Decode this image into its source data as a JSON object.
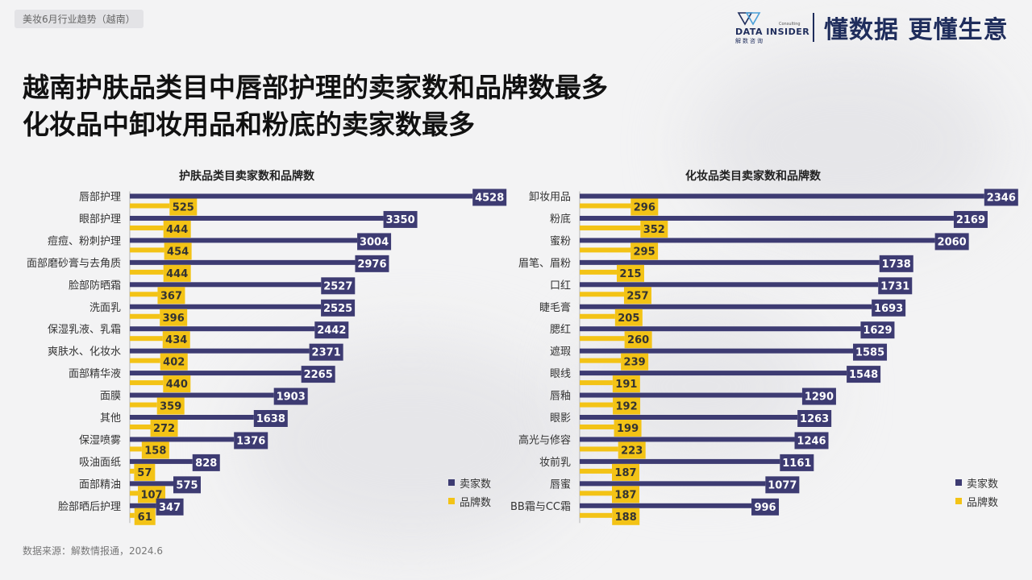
{
  "header": {
    "tag": "美妆6月行业趋势（越南）",
    "logo_text": "DATA INSIDER",
    "logo_sub": "解数咨询",
    "logo_consult": "Consulting",
    "slogan": "懂数据 更懂生意"
  },
  "title_line1": "越南护肤品类目中唇部护理的卖家数和品牌数最多",
  "title_line2": "化妆品中卸妆用品和粉底的卖家数最多",
  "source": "数据来源：解数情报通，2024.6",
  "colors": {
    "seller": "#3d3b72",
    "brand": "#f3c316"
  },
  "chart_data": [
    {
      "type": "bar",
      "title": "护肤品类目卖家数和品牌数",
      "categories": [
        "唇部护理",
        "眼部护理",
        "痘痘、粉刺护理",
        "面部磨砂膏与去角质",
        "脸部防晒霜",
        "洗面乳",
        "保湿乳液、乳霜",
        "爽肤水、化妆水",
        "面部精华液",
        "面膜",
        "其他",
        "保湿喷雾",
        "吸油面纸",
        "面部精油",
        "脸部晒后护理"
      ],
      "series": [
        {
          "name": "卖家数",
          "values": [
            4528,
            3350,
            3004,
            2976,
            2527,
            2525,
            2442,
            2371,
            2265,
            1903,
            1638,
            1376,
            828,
            575,
            347
          ]
        },
        {
          "name": "品牌数",
          "values": [
            525,
            444,
            454,
            444,
            367,
            396,
            434,
            402,
            440,
            359,
            272,
            158,
            57,
            107,
            61
          ]
        }
      ],
      "legend": [
        "卖家数",
        "品牌数"
      ],
      "legend_position": "bottom-right"
    },
    {
      "type": "bar",
      "title": "化妆品类目卖家数和品牌数",
      "categories": [
        "卸妆用品",
        "粉底",
        "蜜粉",
        "眉笔、眉粉",
        "口红",
        "睫毛膏",
        "腮红",
        "遮瑕",
        "眼线",
        "唇釉",
        "眼影",
        "高光与修容",
        "妆前乳",
        "唇蜜",
        "BB霜与CC霜"
      ],
      "series": [
        {
          "name": "卖家数",
          "values": [
            2346,
            2169,
            2060,
            1738,
            1731,
            1693,
            1629,
            1585,
            1548,
            1290,
            1263,
            1246,
            1161,
            1077,
            996
          ]
        },
        {
          "name": "品牌数",
          "values": [
            296,
            352,
            295,
            215,
            257,
            205,
            260,
            239,
            191,
            192,
            199,
            223,
            187,
            187,
            188
          ]
        }
      ],
      "legend": [
        "卖家数",
        "品牌数"
      ],
      "legend_position": "bottom-right"
    }
  ]
}
